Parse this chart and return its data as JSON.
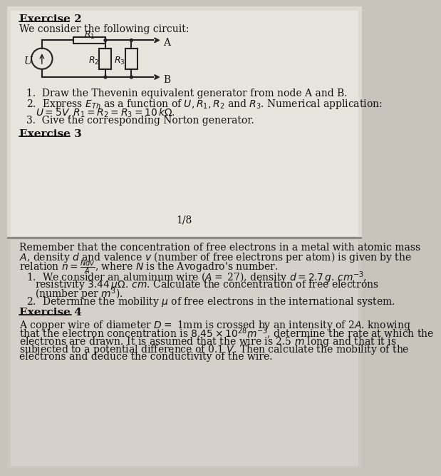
{
  "bg_color_top": "#dedad2",
  "bg_color_bottom": "#ccc8c0",
  "text_color": "#111111",
  "font_family": "serif",
  "title_fontsize": 11,
  "body_fontsize": 10,
  "small_fontsize": 9,
  "exercise2_header": "Exercise 2",
  "exercise2_intro": "We consider the following circuit:",
  "exercise2_q1": "1.  Draw the Thevenin equivalent generator from node A and B.",
  "exercise2_q2a": "2.  Express $E_{Th}$ as a function of $U, R_1, R_2$ and $R_3$. Numerical application:",
  "exercise2_q2b": "$U = 5V, R_1 = R_2 = R_3 = 10\\,k\\Omega.$",
  "exercise2_q3": "3.  Give the corresponding Norton generator.",
  "exercise3_header": "Exercise 3",
  "page_number": "1/8",
  "exercise3_q1a": "1.  We consider an aluminum wire ($A =$ 27), density $d = 2.7\\,g.\\,cm^{-3}$,",
  "exercise3_q1b": "resistivity $3.44\\,\\mu\\Omega.\\,cm$. Calculate the concentration of free electrons",
  "exercise3_q1c": "(number per $m^3$).",
  "exercise3_q2": "2.  Determine the mobility $\\mu$ of free electrons in the international system.",
  "exercise4_header": "Exercise 4",
  "exercise4_l1": "A copper wire of diameter $D =$ 1mm is crossed by an intensity of 2$A$. knowing",
  "exercise4_l2": "that the electron concentration is $8.45\\times10^{28}m^{-3}$, determine the rate at which the",
  "exercise4_l3": "electrons are drawn. It is assumed that the wire is 2.5 $m$ long and that it is",
  "exercise4_l4": "subjected to a potential difference of 0.1 $V$. Then calculate the mobility of the",
  "exercise4_l5": "electrons and deduce the conductivity of the wire.",
  "ex3_rem_l1": "Remember that the concentration of free electrons in a metal with atomic mass",
  "ex3_rem_l2": "$A$, density $d$ and valence $v$ (number of free electrons per atom) is given by the",
  "ex3_rem_l3": "relation $n = \\frac{Ndv}{A}$, where $N$ is the Avogadro's number."
}
